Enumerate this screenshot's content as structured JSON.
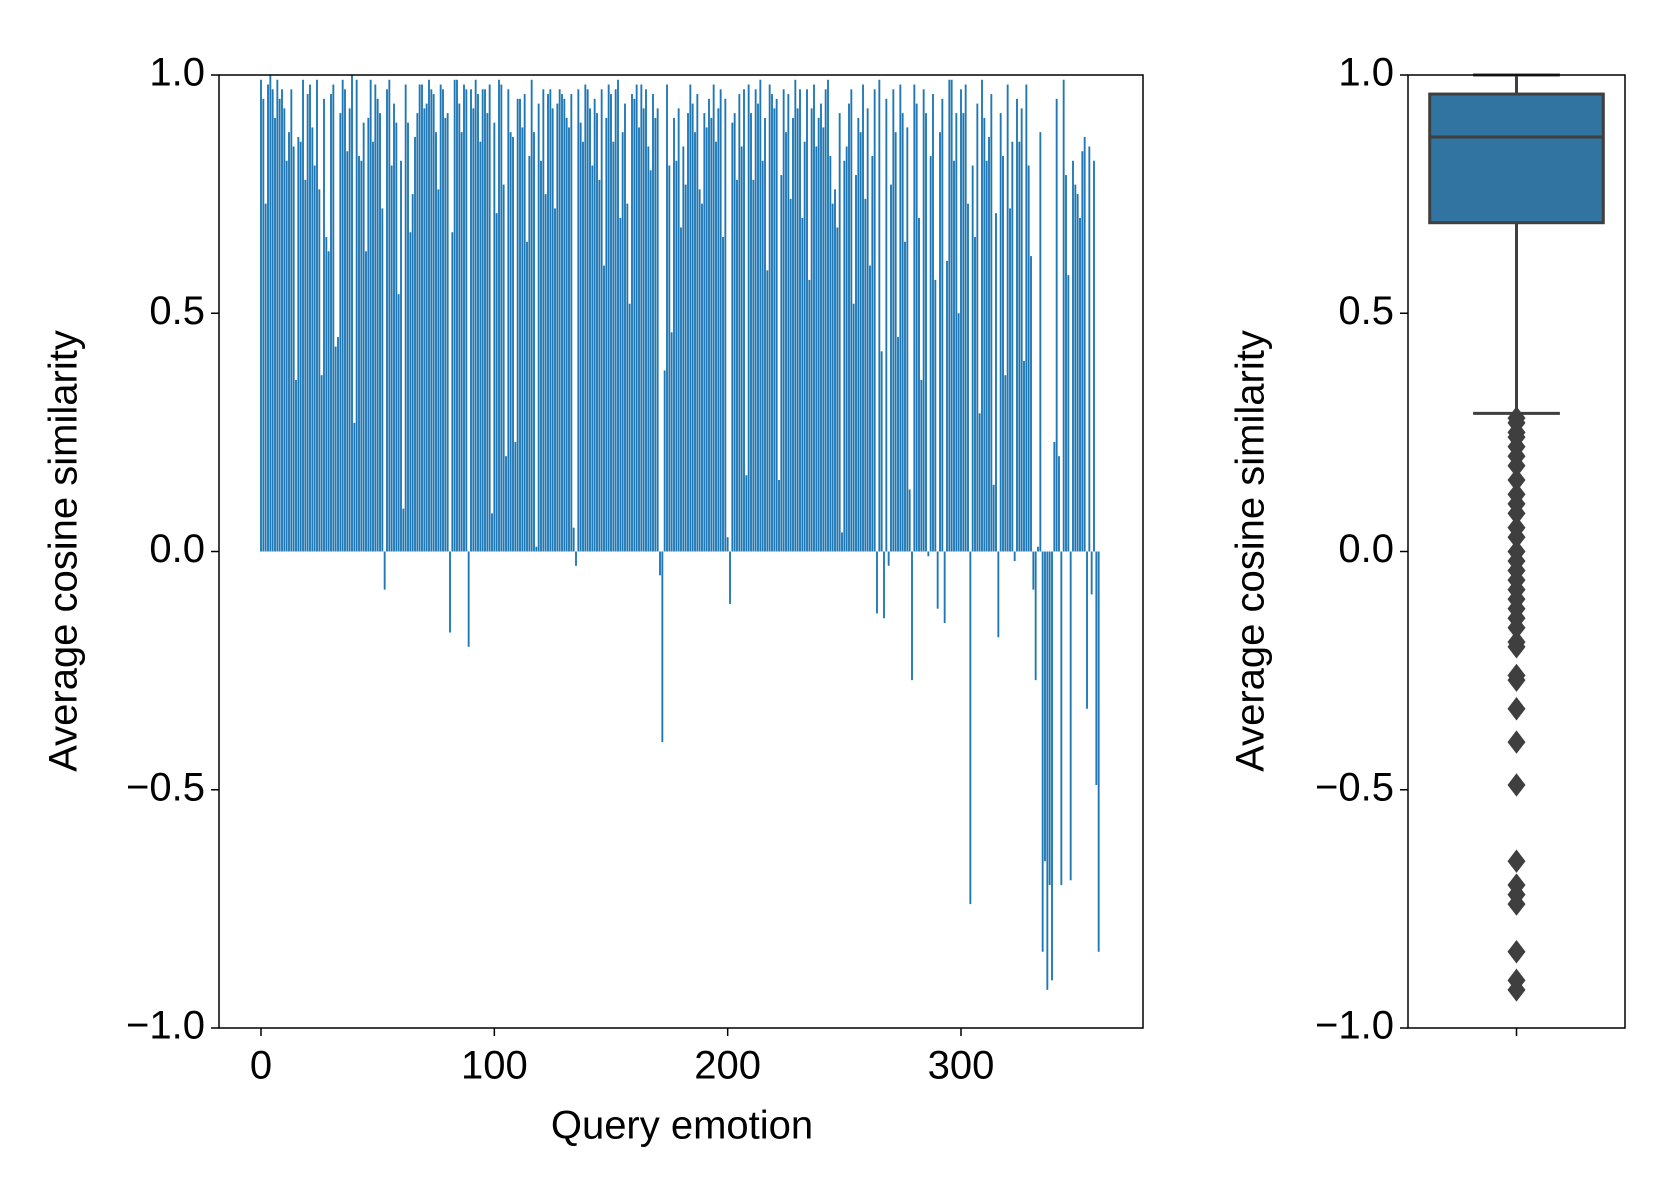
{
  "chart_data": [
    {
      "type": "bar",
      "xlabel": "Query emotion",
      "ylabel": "Average cosine similarity",
      "color": "#1f77b4",
      "xlim": [
        -18,
        378
      ],
      "ylim": [
        -1.0,
        1.0
      ],
      "xticks": [
        0,
        100,
        200,
        300
      ],
      "yticks": [
        {
          "value": -1.0,
          "label": "−1.0"
        },
        {
          "value": -0.5,
          "label": "−0.5"
        },
        {
          "value": 0.0,
          "label": "0.0"
        },
        {
          "value": 0.5,
          "label": "0.5"
        },
        {
          "value": 1.0,
          "label": "1.0"
        }
      ],
      "values": [
        0.99,
        0.95,
        0.73,
        0.98,
        1.0,
        0.97,
        0.91,
        0.99,
        0.95,
        0.97,
        0.93,
        0.82,
        0.88,
        0.97,
        0.85,
        0.36,
        0.87,
        0.86,
        0.99,
        0.78,
        0.96,
        0.98,
        0.89,
        0.81,
        0.99,
        0.76,
        0.37,
        0.95,
        0.66,
        0.63,
        0.96,
        0.98,
        0.43,
        0.45,
        0.92,
        0.99,
        0.97,
        0.84,
        0.93,
        1.0,
        0.27,
        0.99,
        0.83,
        0.82,
        0.9,
        0.63,
        0.91,
        0.99,
        0.86,
        0.98,
        0.95,
        0.92,
        0.72,
        -0.08,
        0.97,
        0.99,
        0.81,
        0.94,
        0.9,
        0.54,
        0.82,
        0.09,
        0.98,
        0.9,
        0.67,
        0.75,
        0.87,
        0.92,
        0.98,
        0.98,
        0.93,
        0.94,
        0.99,
        0.97,
        0.96,
        0.88,
        0.76,
        0.98,
        0.97,
        0.91,
        0.92,
        -0.17,
        0.67,
        0.99,
        0.99,
        0.94,
        0.88,
        0.98,
        0.97,
        -0.2,
        0.97,
        0.93,
        0.99,
        0.96,
        0.86,
        0.97,
        0.97,
        0.92,
        0.98,
        0.08,
        0.9,
        0.71,
        0.99,
        0.98,
        0.77,
        0.2,
        0.97,
        0.88,
        0.87,
        0.23,
        0.95,
        0.95,
        0.89,
        0.96,
        0.65,
        0.83,
        0.99,
        0.88,
        0.01,
        0.94,
        0.82,
        0.97,
        0.75,
        0.96,
        0.97,
        0.93,
        0.72,
        0.94,
        0.97,
        0.96,
        0.95,
        0.91,
        0.89,
        0.96,
        0.05,
        -0.03,
        0.97,
        0.9,
        0.86,
        0.98,
        0.97,
        0.93,
        0.81,
        0.95,
        0.92,
        0.78,
        0.97,
        0.6,
        0.91,
        0.98,
        0.96,
        0.86,
        0.97,
        0.99,
        0.7,
        0.88,
        0.94,
        0.73,
        0.52,
        0.96,
        0.95,
        0.98,
        0.89,
        0.98,
        0.93,
        0.97,
        0.85,
        0.8,
        0.96,
        0.91,
        0.93,
        -0.05,
        -0.4,
        0.38,
        0.98,
        0.81,
        0.46,
        0.91,
        0.82,
        0.93,
        0.68,
        0.85,
        0.77,
        0.92,
        0.98,
        0.94,
        0.88,
        0.96,
        0.76,
        0.73,
        0.92,
        0.89,
        0.95,
        0.91,
        0.98,
        0.86,
        0.93,
        0.97,
        0.66,
        0.95,
        0.03,
        -0.11,
        0.9,
        0.92,
        0.78,
        0.96,
        0.85,
        0.97,
        0.16,
        0.98,
        0.92,
        0.78,
        0.97,
        0.94,
        0.99,
        0.82,
        0.91,
        0.59,
        0.98,
        0.96,
        0.93,
        0.95,
        0.15,
        0.79,
        0.97,
        0.88,
        0.96,
        0.74,
        0.91,
        0.99,
        0.93,
        0.97,
        0.7,
        0.86,
        0.97,
        0.57,
        0.93,
        0.98,
        0.85,
        0.91,
        0.94,
        0.89,
        0.97,
        0.99,
        0.83,
        0.73,
        0.76,
        0.68,
        0.92,
        0.04,
        0.82,
        0.85,
        0.94,
        0.97,
        0.52,
        0.79,
        0.91,
        0.88,
        0.98,
        0.74,
        0.93,
        0.6,
        0.83,
        0.97,
        -0.13,
        0.99,
        0.42,
        -0.14,
        0.95,
        -0.03,
        0.77,
        0.97,
        0.88,
        0.45,
        0.98,
        0.92,
        0.65,
        0.89,
        0.13,
        -0.27,
        0.98,
        0.94,
        0.7,
        0.36,
        0.97,
        0.92,
        -0.01,
        0.83,
        0.96,
        0.57,
        -0.12,
        0.88,
        0.95,
        -0.15,
        0.61,
        0.99,
        0.99,
        0.82,
        0.92,
        0.5,
        0.97,
        0.92,
        0.98,
        0.73,
        -0.74,
        0.81,
        0.66,
        0.94,
        0.29,
        0.99,
        0.91,
        0.82,
        0.87,
        0.96,
        0.14,
        0.71,
        -0.18,
        0.92,
        0.83,
        0.37,
        0.98,
        0.72,
        0.86,
        -0.02,
        0.95,
        0.86,
        0.93,
        0.4,
        0.98,
        0.81,
        0.62,
        -0.08,
        -0.27,
        0.01,
        0.88,
        -0.84,
        -0.65,
        -0.92,
        -0.7,
        -0.9,
        0.23,
        0.95,
        0.2,
        -0.7,
        0.99,
        0.79,
        0.58,
        -0.69,
        0.82,
        0.77,
        0.75,
        0.7,
        0.84,
        0.87,
        -0.33,
        0.85,
        -0.09,
        0.82,
        -0.49,
        -0.84
      ]
    },
    {
      "type": "box",
      "ylabel": "Average cosine similarity",
      "color": "#3274a1",
      "edge_color": "#3f3f3f",
      "ylim": [
        -1.0,
        1.0
      ],
      "yticks": [
        {
          "value": -1.0,
          "label": "−1.0"
        },
        {
          "value": -0.5,
          "label": "−0.5"
        },
        {
          "value": 0.0,
          "label": "0.0"
        },
        {
          "value": 0.5,
          "label": "0.5"
        },
        {
          "value": 1.0,
          "label": "1.0"
        }
      ],
      "whishi": 1.0,
      "q3": 0.96,
      "median": 0.87,
      "q1": 0.69,
      "whislo": 0.29,
      "fliers": [
        0.28,
        0.27,
        0.25,
        0.24,
        0.22,
        0.2,
        0.18,
        0.15,
        0.12,
        0.1,
        0.08,
        0.05,
        0.03,
        0.0,
        -0.02,
        -0.04,
        -0.06,
        -0.08,
        -0.1,
        -0.12,
        -0.14,
        -0.16,
        -0.19,
        -0.2,
        -0.26,
        -0.27,
        -0.33,
        -0.4,
        -0.49,
        -0.65,
        -0.7,
        -0.72,
        -0.74,
        -0.84,
        -0.9,
        -0.92
      ]
    }
  ]
}
